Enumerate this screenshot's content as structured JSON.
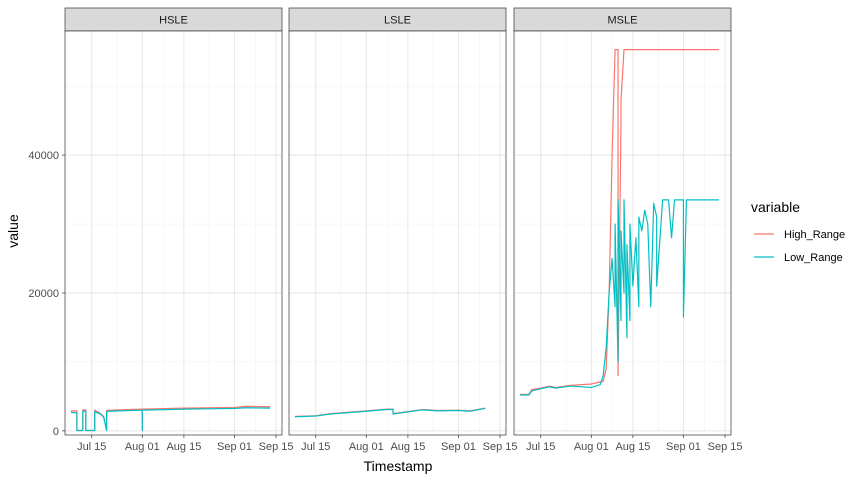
{
  "chart_data": {
    "type": "line",
    "xlabel": "Timestamp",
    "ylabel": "value",
    "x_ticks": [
      "Jul 15",
      "Aug 01",
      "Aug 15",
      "Sep 01",
      "Sep 15"
    ],
    "x_tick_dates": [
      "2021-07-15",
      "2021-08-01",
      "2021-08-15",
      "2021-09-01",
      "2021-09-15"
    ],
    "xlim": [
      "2021-07-06",
      "2021-09-17"
    ],
    "y_ticks": [
      0,
      20000,
      40000
    ],
    "ylim": [
      -600,
      58000
    ],
    "legend": {
      "title": "variable",
      "position": "right",
      "entries": [
        {
          "name": "High_Range",
          "color": "#F8766D"
        },
        {
          "name": "Low_Range",
          "color": "#00BFC4"
        }
      ]
    },
    "panels": [
      {
        "strip": "HSLE",
        "series": [
          {
            "name": "High_Range",
            "color": "#F8766D",
            "x": [
              "2021-07-08",
              "2021-07-10",
              "2021-07-10",
              "2021-07-12",
              "2021-07-12",
              "2021-07-13",
              "2021-07-13",
              "2021-07-16",
              "2021-07-16",
              "2021-07-18",
              "2021-07-19",
              "2021-07-20",
              "2021-07-20",
              "2021-07-21",
              "2021-07-24",
              "2021-08-01",
              "2021-08-01",
              "2021-08-01",
              "2021-08-01",
              "2021-08-05",
              "2021-08-15",
              "2021-09-01",
              "2021-09-05",
              "2021-09-13"
            ],
            "y": [
              2900,
              2900,
              50,
              50,
              3050,
              3050,
              50,
              50,
              3000,
              2500,
              2100,
              50,
              2950,
              3000,
              3050,
              3150,
              150,
              3150,
              3150,
              3200,
              3300,
              3400,
              3550,
              3500
            ]
          },
          {
            "name": "Low_Range",
            "color": "#00BFC4",
            "x": [
              "2021-07-08",
              "2021-07-10",
              "2021-07-10",
              "2021-07-12",
              "2021-07-12",
              "2021-07-13",
              "2021-07-13",
              "2021-07-16",
              "2021-07-16",
              "2021-07-18",
              "2021-07-19",
              "2021-07-20",
              "2021-07-20",
              "2021-07-21",
              "2021-07-24",
              "2021-08-01",
              "2021-08-01",
              "2021-08-01",
              "2021-08-01",
              "2021-08-05",
              "2021-08-15",
              "2021-09-01",
              "2021-09-05",
              "2021-09-13"
            ],
            "y": [
              2700,
              2600,
              50,
              50,
              2850,
              2850,
              50,
              50,
              2800,
              2400,
              2000,
              50,
              2750,
              2850,
              2900,
              3000,
              50,
              3000,
              3000,
              3050,
              3150,
              3250,
              3350,
              3300
            ]
          }
        ]
      },
      {
        "strip": "LSLE",
        "series": [
          {
            "name": "High_Range",
            "color": "#F8766D",
            "x": [
              "2021-07-08",
              "2021-07-12",
              "2021-07-15",
              "2021-07-20",
              "2021-08-01",
              "2021-08-08",
              "2021-08-10",
              "2021-08-10",
              "2021-08-15",
              "2021-08-20",
              "2021-08-25",
              "2021-09-01",
              "2021-09-05",
              "2021-09-10"
            ],
            "y": [
              2100,
              2150,
              2200,
              2500,
              2900,
              3150,
              3150,
              2500,
              2800,
              3100,
              2950,
              3000,
              2900,
              3300
            ]
          },
          {
            "name": "Low_Range",
            "color": "#00BFC4",
            "x": [
              "2021-07-08",
              "2021-07-12",
              "2021-07-15",
              "2021-07-20",
              "2021-08-01",
              "2021-08-08",
              "2021-08-10",
              "2021-08-10",
              "2021-08-15",
              "2021-08-20",
              "2021-08-25",
              "2021-09-01",
              "2021-09-05",
              "2021-09-10"
            ],
            "y": [
              2050,
              2100,
              2150,
              2450,
              2850,
              3100,
              3100,
              2450,
              2750,
              3050,
              2900,
              2950,
              2850,
              3250
            ]
          }
        ]
      },
      {
        "strip": "MSLE",
        "series": [
          {
            "name": "High_Range",
            "color": "#F8766D",
            "x": [
              "2021-07-08",
              "2021-07-11",
              "2021-07-12",
              "2021-07-15",
              "2021-07-18",
              "2021-07-20",
              "2021-07-25",
              "2021-08-01",
              "2021-08-05",
              "2021-08-06",
              "2021-08-07",
              "2021-08-08",
              "2021-08-09",
              "2021-08-10",
              "2021-08-10",
              "2021-08-11",
              "2021-08-11",
              "2021-08-12",
              "2021-08-13",
              "2021-08-20",
              "2021-09-01",
              "2021-09-13"
            ],
            "y": [
              5300,
              5300,
              6000,
              6200,
              6500,
              6300,
              6600,
              6800,
              7200,
              9000,
              20000,
              40000,
              55300,
              55300,
              8000,
              45000,
              48000,
              55300,
              55300,
              55300,
              55300,
              55300
            ]
          },
          {
            "name": "Low_Range",
            "color": "#00BFC4",
            "x": [
              "2021-07-08",
              "2021-07-11",
              "2021-07-12",
              "2021-07-15",
              "2021-07-18",
              "2021-07-20",
              "2021-07-25",
              "2021-08-01",
              "2021-08-04",
              "2021-08-05",
              "2021-08-06",
              "2021-08-07",
              "2021-08-08",
              "2021-08-09",
              "2021-08-09",
              "2021-08-10",
              "2021-08-10",
              "2021-08-11",
              "2021-08-11",
              "2021-08-12",
              "2021-08-12",
              "2021-08-13",
              "2021-08-13",
              "2021-08-14",
              "2021-08-14",
              "2021-08-15",
              "2021-08-16",
              "2021-08-17",
              "2021-08-17",
              "2021-08-18",
              "2021-08-19",
              "2021-08-20",
              "2021-08-21",
              "2021-08-22",
              "2021-08-23",
              "2021-08-23",
              "2021-08-25",
              "2021-08-27",
              "2021-08-28",
              "2021-08-29",
              "2021-08-30",
              "2021-09-01",
              "2021-09-01",
              "2021-09-02",
              "2021-09-13"
            ],
            "y": [
              5200,
              5200,
              5800,
              6100,
              6400,
              6200,
              6500,
              6300,
              6700,
              8000,
              12000,
              20000,
              25000,
              18000,
              30000,
              10000,
              33500,
              16000,
              29000,
              20000,
              33500,
              13500,
              27000,
              16000,
              30000,
              21000,
              28000,
              18000,
              31000,
              29000,
              32000,
              30000,
              18000,
              33000,
              31000,
              21000,
              33500,
              33500,
              28000,
              33500,
              33500,
              33500,
              16500,
              33500,
              33500
            ]
          }
        ]
      }
    ]
  }
}
